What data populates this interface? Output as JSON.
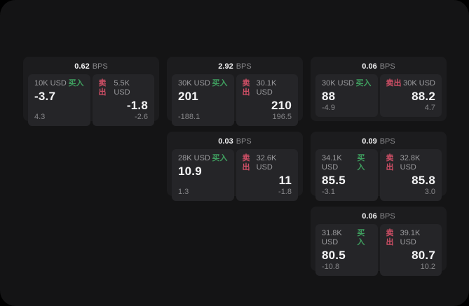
{
  "colors": {
    "buy": "#3f9f5f",
    "sell": "#d04f66",
    "window-bg": "#141415",
    "card-bg": "#1c1c1e",
    "panel-bg": "#252528"
  },
  "labels": {
    "bps": "BPS",
    "buy": "买入",
    "sell": "卖出"
  },
  "cards": [
    {
      "bps": "0.62",
      "buy": {
        "amount": "10K USD",
        "value": "-3.7",
        "sub": "4.3"
      },
      "sell": {
        "amount": "5.5K USD",
        "value": "-1.8",
        "sub": "-2.6"
      }
    },
    {
      "bps": "2.92",
      "buy": {
        "amount": "30K USD",
        "value": "201",
        "sub": "-188.1"
      },
      "sell": {
        "amount": "30.1K USD",
        "value": "210",
        "sub": "196.5"
      }
    },
    {
      "bps": "0.06",
      "buy": {
        "amount": "30K USD",
        "value": "88",
        "sub": "-4.9"
      },
      "sell": {
        "amount": "30K USD",
        "value": "88.2",
        "sub": "4.7"
      }
    },
    {
      "bps": "0.03",
      "buy": {
        "amount": "28K USD",
        "value": "10.9",
        "sub": "1.3"
      },
      "sell": {
        "amount": "32.6K USD",
        "value": "11",
        "sub": "-1.8"
      }
    },
    {
      "bps": "0.09",
      "buy": {
        "amount": "34.1K USD",
        "value": "85.5",
        "sub": "-3.1"
      },
      "sell": {
        "amount": "32.8K USD",
        "value": "85.8",
        "sub": "3.0"
      }
    },
    {
      "bps": "0.06",
      "buy": {
        "amount": "31.8K USD",
        "value": "80.5",
        "sub": "-10.8"
      },
      "sell": {
        "amount": "39.1K USD",
        "value": "80.7",
        "sub": "10.2"
      }
    }
  ]
}
